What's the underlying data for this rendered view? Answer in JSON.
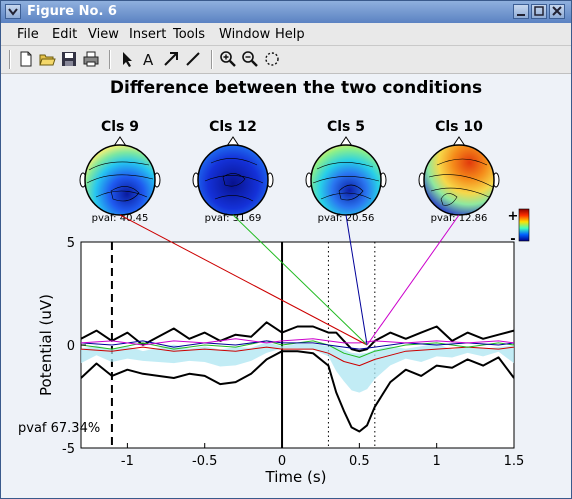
{
  "window": {
    "title": "Figure No. 6"
  },
  "menu": [
    "File",
    "Edit",
    "View",
    "Insert",
    "Tools",
    "Window",
    "Help"
  ],
  "toolbar_icons": [
    "new-file-icon",
    "open-folder-icon",
    "save-icon",
    "print-icon",
    "arrow-pointer-icon",
    "text-tool-icon",
    "arrow-tool-icon",
    "line-tool-icon",
    "zoom-in-icon",
    "zoom-out-icon",
    "rotate-icon"
  ],
  "figure": {
    "title": "Difference between the two conditions",
    "colorbar": {
      "plus": "+",
      "minus": "-"
    },
    "scalp_maps": [
      {
        "label": "Cls 9",
        "pvaf": "pvaf: 40.45"
      },
      {
        "label": "Cls 12",
        "pvaf": "pvaf: 31.69"
      },
      {
        "label": "Cls 5",
        "pvaf": "pvaf: 20.56"
      },
      {
        "label": "Cls 10",
        "pvaf": "pvaf: 12.86"
      }
    ],
    "pvaf_total": "pvaf 67.34%"
  },
  "chart_data": {
    "type": "line",
    "xlabel": "Time (s)",
    "ylabel": "Potential (uV)",
    "xlim": [
      -1.3,
      1.5
    ],
    "ylim": [
      -5,
      5
    ],
    "xticks": [
      -1,
      -0.5,
      0,
      0.5,
      1,
      1.5
    ],
    "xtick_labels": [
      "-1",
      "-0.5",
      "0",
      "0.5",
      "1",
      "1.5"
    ],
    "yticks": [
      -5,
      0,
      5
    ],
    "ytick_labels": [
      "-5",
      "0",
      "5"
    ],
    "vlines": [
      {
        "x": -1.1,
        "style": "dashed"
      },
      {
        "x": 0,
        "style": "solid"
      },
      {
        "x": 0.3,
        "style": "dotted"
      },
      {
        "x": 0.6,
        "style": "dotted"
      }
    ],
    "connector_target": {
      "x": 0.55,
      "y": 0
    },
    "series_colors": {
      "envelope": "#000000",
      "cls9": "#cc0000",
      "cls12": "#22bb22",
      "cls5": "#000099",
      "cls10": "#cc00cc",
      "fill": "#aee6f2"
    },
    "series": [
      {
        "name": "",
        "x": [
          -1.3,
          -1.2,
          -1.1,
          -1.0,
          -0.9,
          -0.8,
          -0.7,
          -0.6,
          -0.5,
          -0.4,
          -0.3,
          -0.2,
          -0.1,
          0.0,
          0.1,
          0.2,
          0.3,
          0.35,
          0.4,
          0.45,
          0.5,
          0.55,
          0.6,
          0.7,
          0.8,
          0.9,
          1.0,
          1.1,
          1.2,
          1.3,
          1.4,
          1.5
        ],
        "y": [
          -1.6,
          -0.9,
          -1.5,
          -1.2,
          -1.4,
          -1.5,
          -1.6,
          -1.4,
          -1.5,
          -1.9,
          -1.8,
          -1.4,
          -0.7,
          -0.3,
          -0.3,
          -0.4,
          -1.0,
          -2.3,
          -3.2,
          -4.0,
          -4.2,
          -3.9,
          -3.0,
          -1.8,
          -1.2,
          -1.5,
          -1.0,
          -1.1,
          -0.7,
          -1.0,
          -0.6,
          -1.6
        ]
      },
      {
        "name": "",
        "x": [
          -1.3,
          -1.2,
          -1.1,
          -1.0,
          -0.9,
          -0.8,
          -0.7,
          -0.6,
          -0.5,
          -0.4,
          -0.3,
          -0.2,
          -0.1,
          0.0,
          0.1,
          0.2,
          0.3,
          0.35,
          0.4,
          0.45,
          0.5,
          0.55,
          0.6,
          0.7,
          0.8,
          0.9,
          1.0,
          1.1,
          1.2,
          1.3,
          1.4,
          1.5
        ],
        "y": [
          0.3,
          0.7,
          0.2,
          0.6,
          0.0,
          0.4,
          0.8,
          0.3,
          0.6,
          0.2,
          0.5,
          0.4,
          1.1,
          0.6,
          0.9,
          0.9,
          0.6,
          0.6,
          0.2,
          -0.2,
          -0.3,
          -0.2,
          0.2,
          0.6,
          0.3,
          0.6,
          0.9,
          0.2,
          0.6,
          0.3,
          0.5,
          0.7
        ]
      },
      {
        "name": "",
        "x": [
          -1.3,
          -1.1,
          -0.9,
          -0.7,
          -0.5,
          -0.3,
          -0.1,
          0.0,
          0.2,
          0.3,
          0.4,
          0.5,
          0.6,
          0.8,
          1.0,
          1.2,
          1.4,
          1.5
        ],
        "y": [
          -0.2,
          -0.3,
          -0.1,
          -0.3,
          -0.2,
          -0.3,
          -0.1,
          -0.2,
          -0.2,
          -0.4,
          -0.8,
          -1.0,
          -0.7,
          -0.3,
          -0.2,
          -0.1,
          -0.2,
          -0.1
        ]
      },
      {
        "name": "",
        "x": [
          -1.3,
          -1.1,
          -0.9,
          -0.7,
          -0.5,
          -0.3,
          -0.1,
          0.0,
          0.2,
          0.3,
          0.4,
          0.5,
          0.6,
          0.8,
          1.0,
          1.2,
          1.4,
          1.5
        ],
        "y": [
          0.0,
          -0.2,
          0.1,
          -0.2,
          0.0,
          -0.1,
          0.2,
          0.0,
          0.2,
          0.0,
          -0.4,
          -0.6,
          -0.3,
          0.0,
          0.1,
          -0.1,
          0.1,
          0.0
        ]
      },
      {
        "name": "",
        "x": [
          -1.3,
          -1.1,
          -0.9,
          -0.7,
          -0.5,
          -0.3,
          -0.1,
          0.0,
          0.2,
          0.3,
          0.4,
          0.5,
          0.6,
          0.8,
          1.0,
          1.2,
          1.4,
          1.5
        ],
        "y": [
          0.1,
          0.0,
          0.2,
          -0.1,
          0.1,
          0.0,
          0.2,
          0.1,
          0.1,
          0.0,
          -0.1,
          -0.2,
          -0.1,
          0.1,
          0.0,
          0.1,
          0.0,
          0.1
        ]
      },
      {
        "name": "",
        "x": [
          -1.3,
          -1.1,
          -0.9,
          -0.7,
          -0.5,
          -0.3,
          -0.1,
          0.0,
          0.2,
          0.3,
          0.4,
          0.5,
          0.6,
          0.8,
          1.0,
          1.2,
          1.4,
          1.5
        ],
        "y": [
          0.1,
          0.2,
          0.0,
          0.2,
          0.1,
          0.3,
          0.1,
          0.2,
          0.3,
          0.2,
          0.1,
          0.1,
          0.2,
          0.1,
          0.2,
          0.1,
          0.2,
          0.1
        ]
      }
    ]
  }
}
